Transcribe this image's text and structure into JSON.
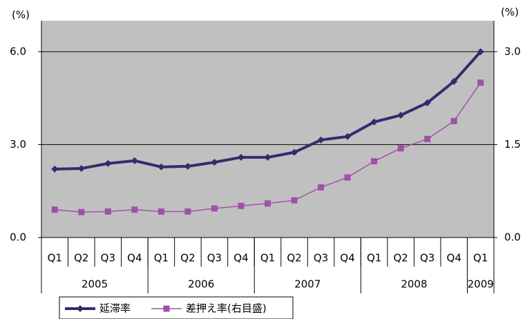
{
  "chart_data": {
    "type": "line",
    "y_unit": "(%)",
    "y2_unit": "(%)",
    "categories": [
      "Q1",
      "Q2",
      "Q3",
      "Q4",
      "Q1",
      "Q2",
      "Q3",
      "Q4",
      "Q1",
      "Q2",
      "Q3",
      "Q4",
      "Q1",
      "Q2",
      "Q3",
      "Q4",
      "Q1"
    ],
    "year_groups": [
      "2005",
      "2006",
      "2007",
      "2008",
      "2009"
    ],
    "ylim": [
      0,
      7
    ],
    "yticks": [
      {
        "value": 0,
        "label": "0.0"
      },
      {
        "value": 3,
        "label": "3.0"
      },
      {
        "value": 6,
        "label": "6.0"
      }
    ],
    "y2lim": [
      0,
      3.5
    ],
    "y2ticks": [
      {
        "value": 0,
        "label": "0.0"
      },
      {
        "value": 1.5,
        "label": "1.5"
      },
      {
        "value": 3,
        "label": "3.0"
      }
    ],
    "grid": true,
    "plot_background": "#c0c0c0",
    "series": [
      {
        "name": "延滞率",
        "color": "#2e2e6e",
        "marker": "diamond",
        "values": [
          2.21,
          2.23,
          2.39,
          2.48,
          2.28,
          2.3,
          2.43,
          2.59,
          2.59,
          2.75,
          3.15,
          3.26,
          3.73,
          3.95,
          4.35,
          5.04,
          6.0
        ]
      },
      {
        "name": "差押え率(右目盛)",
        "color": "#a050a8",
        "marker": "square",
        "axis": "y2",
        "values": [
          0.45,
          0.41,
          0.42,
          0.45,
          0.42,
          0.42,
          0.47,
          0.51,
          0.55,
          0.6,
          0.81,
          0.97,
          1.23,
          1.44,
          1.59,
          1.88,
          2.5
        ]
      }
    ]
  }
}
